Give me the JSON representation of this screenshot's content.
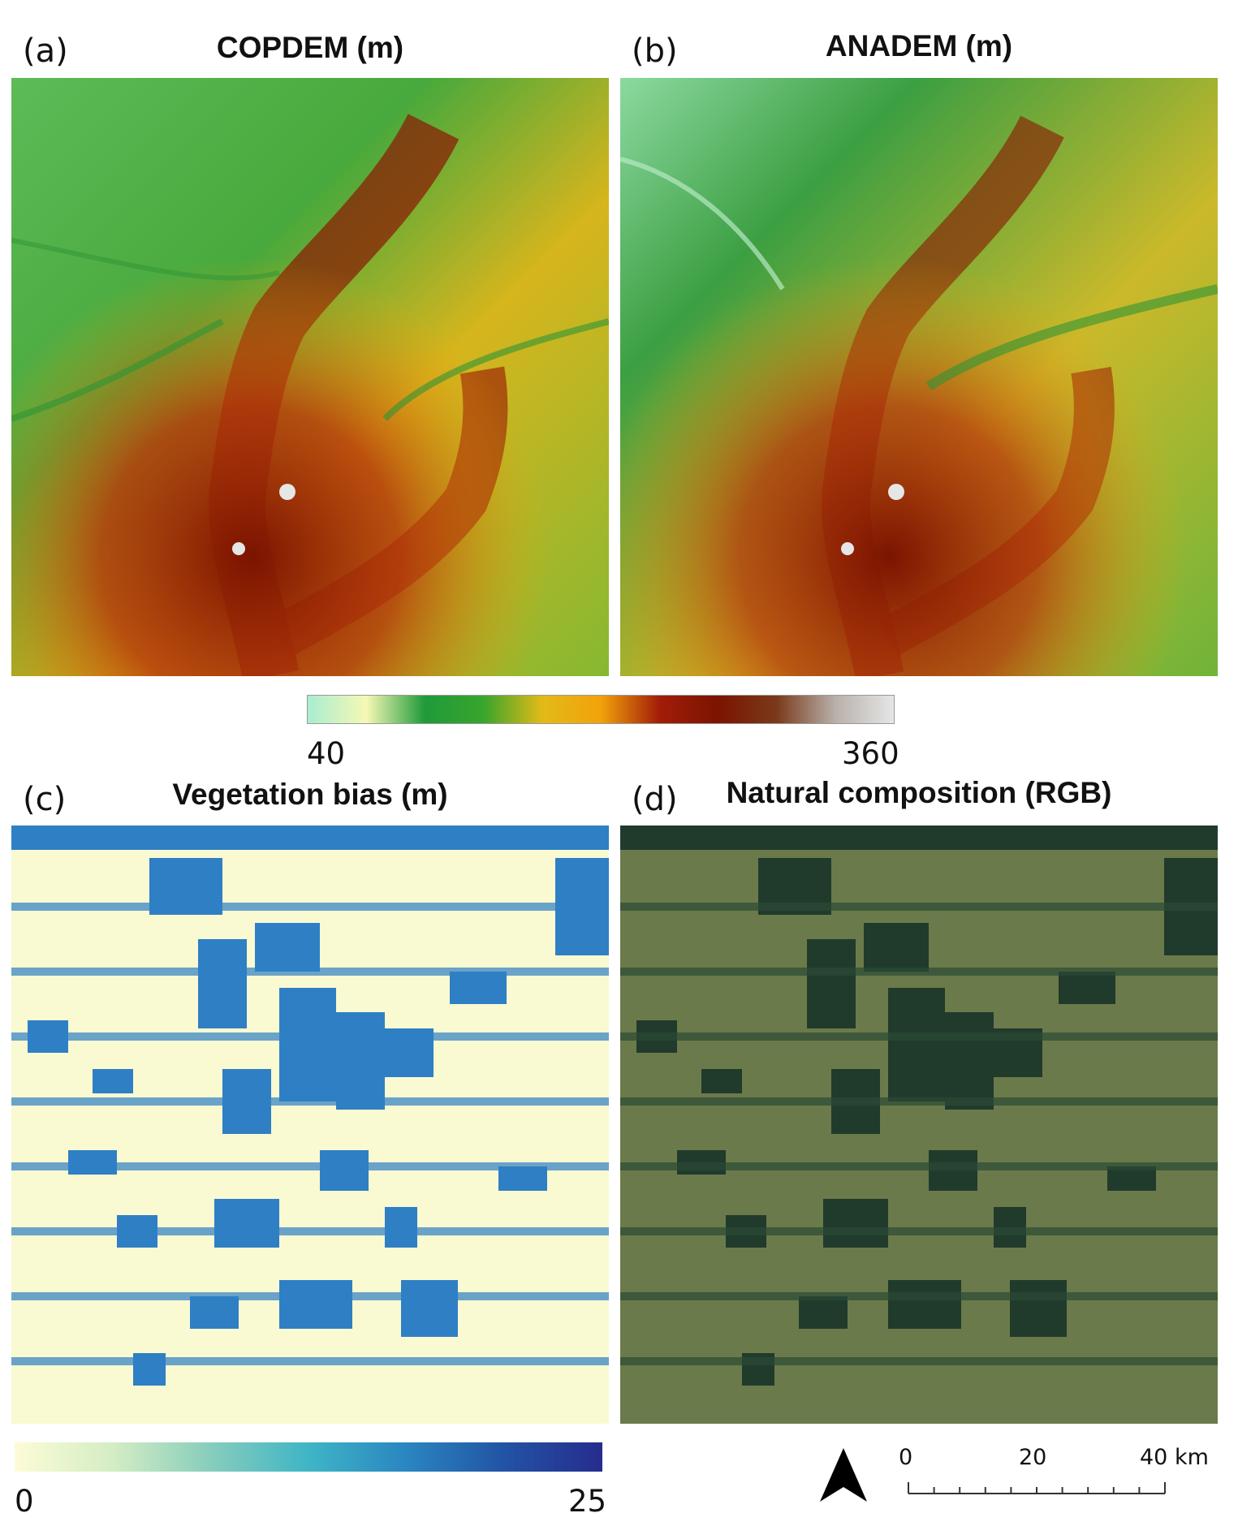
{
  "panels": [
    {
      "letter": "(a)",
      "title": "COPDEM (m)"
    },
    {
      "letter": "(b)",
      "title": "ANADEM (m)"
    },
    {
      "letter": "(c)",
      "title": "Vegetation bias (m)"
    },
    {
      "letter": "(d)",
      "title": "Natural composition (RGB)"
    }
  ],
  "elevation_colorbar": {
    "min_label": "40",
    "max_label": "360",
    "colors": [
      "#a8edd2",
      "#f6f8b4",
      "#1f9a3a",
      "#38a52c",
      "#e2ba18",
      "#f2a20b",
      "#a21d08",
      "#7b1400",
      "#7a3a1a",
      "#b8b0aa",
      "#e6e6e6"
    ]
  },
  "bias_colorbar": {
    "min_label": "0",
    "max_label": "25",
    "colors": [
      "#fcfcd6",
      "#d4edc4",
      "#87cdbc",
      "#3fb5c6",
      "#2a86c0",
      "#2253a4",
      "#262c8d"
    ]
  },
  "scale_bar": {
    "labels": [
      "0",
      "20",
      "40 km"
    ]
  },
  "north_arrow": {
    "icon": "north-arrow-icon"
  }
}
